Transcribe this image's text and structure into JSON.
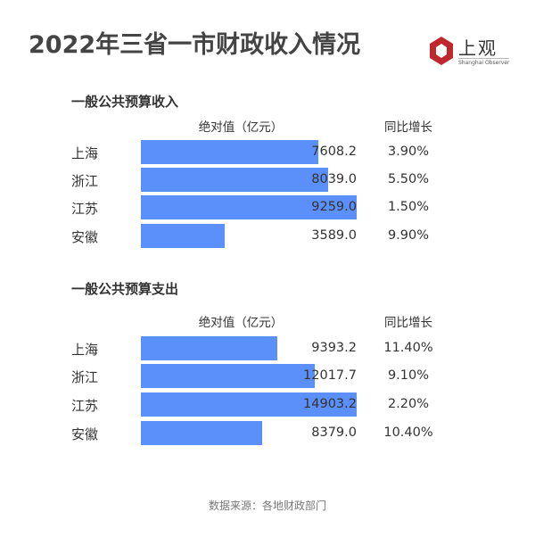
{
  "title": "2022年三省一市财政收入情况",
  "logo": {
    "name": "上观",
    "sub": "Shanghai Observer"
  },
  "chart_data": [
    {
      "type": "bar",
      "title": "一般公共预算收入",
      "value_header": "绝对值（亿元）",
      "growth_header": "同比增长",
      "categories": [
        "上海",
        "浙江",
        "江苏",
        "安徽"
      ],
      "values": [
        7608.2,
        8039.0,
        9259.0,
        3589.0
      ],
      "value_labels": [
        "7608.2",
        "8039.0",
        "9259.0",
        "3589.0"
      ],
      "growth": [
        "3.90%",
        "5.50%",
        "1.50%",
        "9.90%"
      ],
      "color": "#5b8ff9"
    },
    {
      "type": "bar",
      "title": "一般公共预算支出",
      "value_header": "绝对值（亿元）",
      "growth_header": "同比增长",
      "categories": [
        "上海",
        "浙江",
        "江苏",
        "安徽"
      ],
      "values": [
        9393.2,
        12017.7,
        14903.2,
        8379.0
      ],
      "value_labels": [
        "9393.2",
        "12017.7",
        "14903.2",
        "8379.0"
      ],
      "growth": [
        "11.40%",
        "9.10%",
        "2.20%",
        "10.40%"
      ],
      "color": "#5b8ff9"
    }
  ],
  "footer": "数据来源：各地财政部门"
}
